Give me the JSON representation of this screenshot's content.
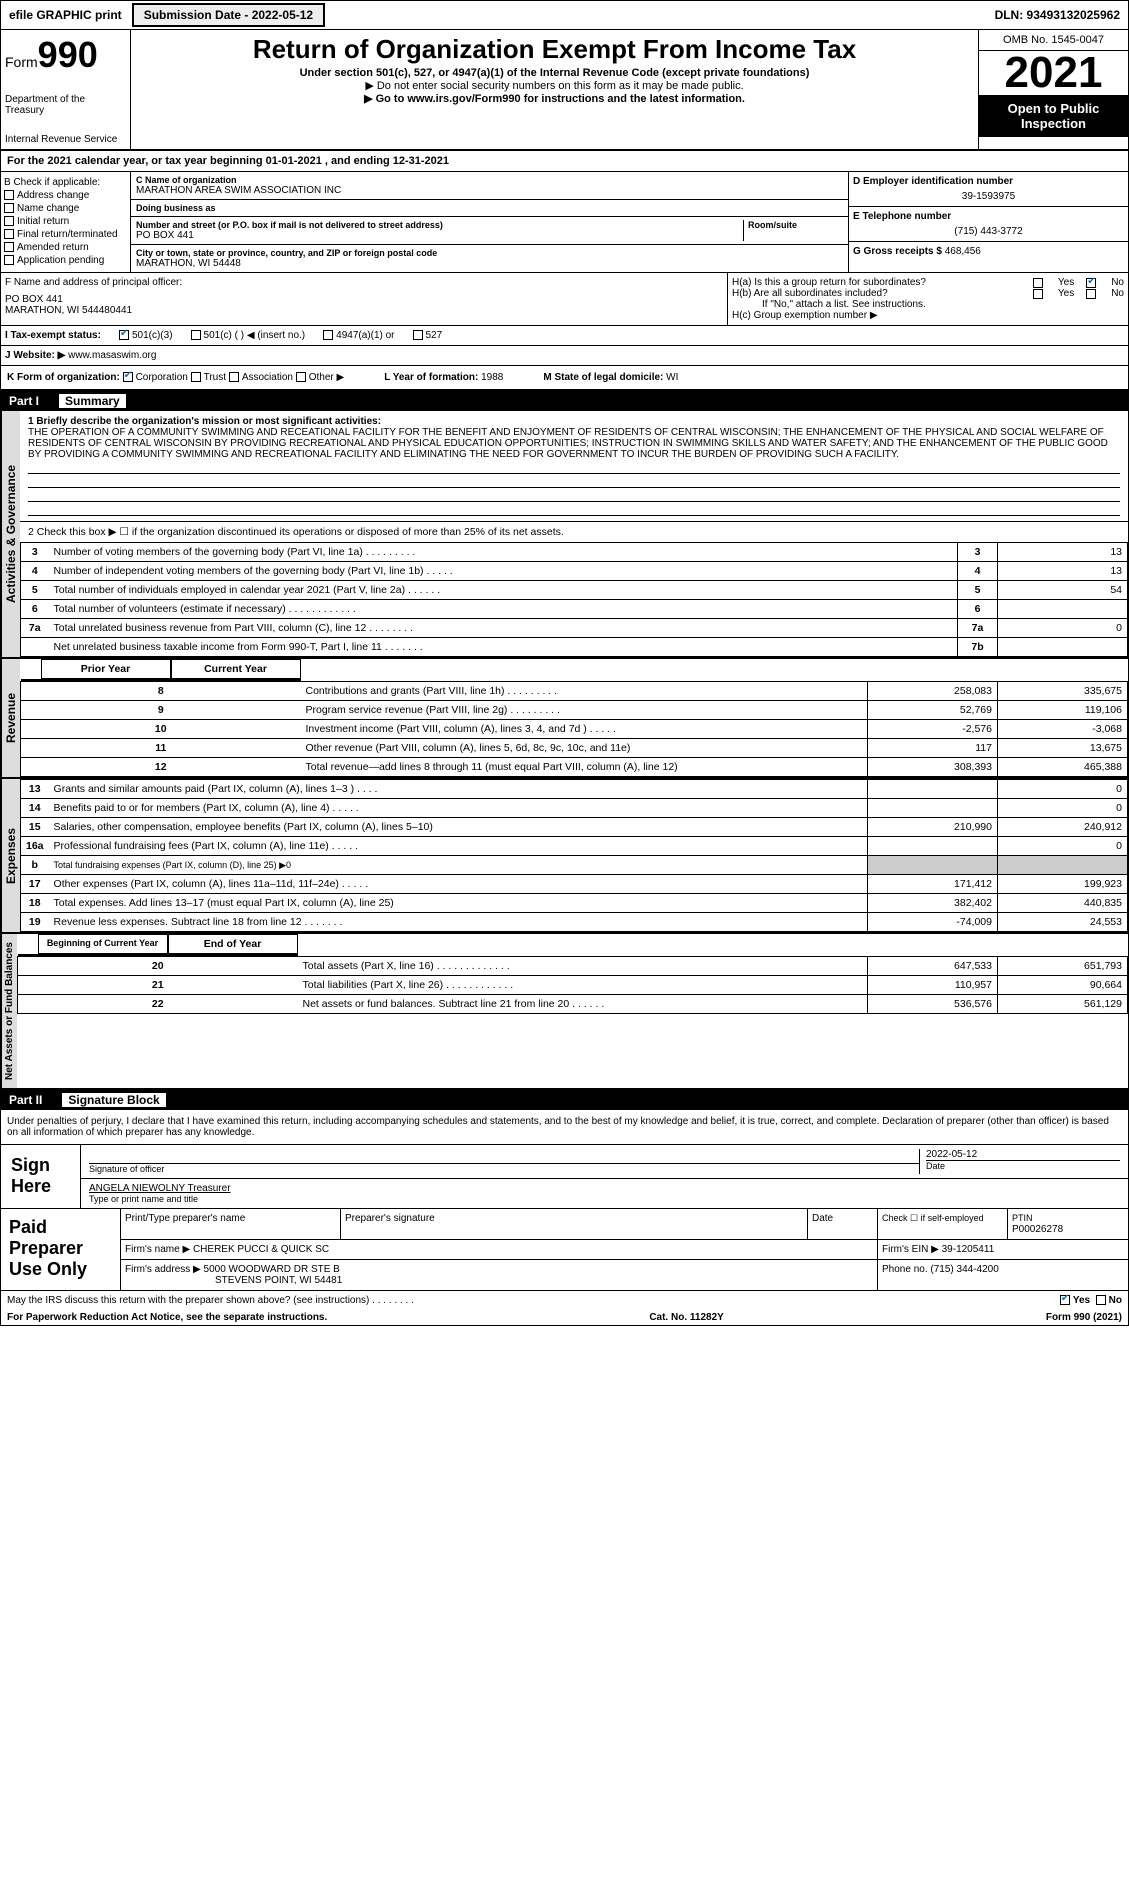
{
  "topbar": {
    "efile": "efile GRAPHIC print",
    "subdate_label": "Submission Date - 2022-05-12",
    "dln": "DLN: 93493132025962"
  },
  "hdr": {
    "form_word": "Form",
    "form_num": "990",
    "dept": "Department of the Treasury",
    "irs": "Internal Revenue Service",
    "title": "Return of Organization Exempt From Income Tax",
    "sub": "Under section 501(c), 527, or 4947(a)(1) of the Internal Revenue Code (except private foundations)",
    "note1": "▶ Do not enter social security numbers on this form as it may be made public.",
    "note2": "▶ Go to www.irs.gov/Form990 for instructions and the latest information.",
    "omb": "OMB No. 1545-0047",
    "year": "2021",
    "pub": "Open to Public Inspection"
  },
  "taxyear": "For the 2021 calendar year, or tax year beginning 01-01-2021   , and ending 12-31-2021",
  "b": {
    "title": "B Check if applicable:",
    "opts": [
      "Address change",
      "Name change",
      "Initial return",
      "Final return/terminated",
      "Amended return",
      "Application pending"
    ]
  },
  "c": {
    "name_lbl": "C Name of organization",
    "name": "MARATHON AREA SWIM ASSOCIATION INC",
    "dba_lbl": "Doing business as",
    "dba": "",
    "street_lbl": "Number and street (or P.O. box if mail is not delivered to street address)",
    "street": "PO BOX 441",
    "room_lbl": "Room/suite",
    "city_lbl": "City or town, state or province, country, and ZIP or foreign postal code",
    "city": "MARATHON, WI  54448"
  },
  "d": {
    "lbl": "D Employer identification number",
    "val": "39-1593975"
  },
  "e": {
    "lbl": "E Telephone number",
    "val": "(715) 443-3772"
  },
  "g": {
    "lbl": "G Gross receipts $",
    "val": "468,456"
  },
  "f": {
    "lbl": "F  Name and address of principal officer:",
    "l1": "PO BOX 441",
    "l2": "MARATHON, WI  544480441"
  },
  "h": {
    "a": "H(a)  Is this a group return for subordinates?",
    "b": "H(b)  Are all subordinates included?",
    "note": "If \"No,\" attach a list. See instructions.",
    "c": "H(c)  Group exemption number ▶"
  },
  "i": {
    "lbl": "I   Tax-exempt status:",
    "o1": "501(c)(3)",
    "o2": "501(c) (  ) ◀ (insert no.)",
    "o3": "4947(a)(1) or",
    "o4": "527"
  },
  "j": {
    "lbl": "J   Website: ▶",
    "val": "www.masaswim.org"
  },
  "k": {
    "lbl": "K Form of organization:",
    "o1": "Corporation",
    "o2": "Trust",
    "o3": "Association",
    "o4": "Other ▶"
  },
  "l": {
    "lbl": "L Year of formation:",
    "val": "1988"
  },
  "m": {
    "lbl": "M State of legal domicile:",
    "val": "WI"
  },
  "part1": {
    "hdr": "Part I",
    "title": "Summary"
  },
  "mission": {
    "lbl": "1   Briefly describe the organization's mission or most significant activities:",
    "txt": "THE OPERATION OF A COMMUNITY SWIMMING AND RECEATIONAL FACILITY FOR THE BENEFIT AND ENJOYMENT OF RESIDENTS OF CENTRAL WISCONSIN; THE ENHANCEMENT OF THE PHYSICAL AND SOCIAL WELFARE OF RESIDENTS OF CENTRAL WISCONSIN BY PROVIDING RECREATIONAL AND PHYSICAL EDUCATION OPPORTUNITIES; INSTRUCTION IN SWIMMING SKILLS AND WATER SAFETY; AND THE ENHANCEMENT OF THE PUBLIC GOOD BY PROVIDING A COMMUNITY SWIMMING AND RECREATIONAL FACILITY AND ELIMINATING THE NEED FOR GOVERNMENT TO INCUR THE BURDEN OF PROVIDING SUCH A FACILITY."
  },
  "gov": {
    "l2": "2   Check this box ▶ ☐ if the organization discontinued its operations or disposed of more than 25% of its net assets.",
    "rows": [
      {
        "n": "3",
        "t": "Number of voting members of the governing body (Part VI, line 1a)   .    .    .    .    .    .    .    .    .",
        "rn": "3",
        "v": "13"
      },
      {
        "n": "4",
        "t": "Number of independent voting members of the governing body (Part VI, line 1b)    .    .    .    .    .",
        "rn": "4",
        "v": "13"
      },
      {
        "n": "5",
        "t": "Total number of individuals employed in calendar year 2021 (Part V, line 2a)    .    .    .    .    .    .",
        "rn": "5",
        "v": "54"
      },
      {
        "n": "6",
        "t": "Total number of volunteers (estimate if necessary)    .    .    .    .    .    .    .    .    .    .    .    .",
        "rn": "6",
        "v": ""
      },
      {
        "n": "7a",
        "t": "Total unrelated business revenue from Part VIII, column (C), line 12    .    .    .    .    .    .    .    .",
        "rn": "7a",
        "v": "0"
      },
      {
        "n": "",
        "t": "Net unrelated business taxable income from Form 990-T, Part I, line 11    .    .    .    .    .    .    .",
        "rn": "7b",
        "v": ""
      }
    ]
  },
  "rev": {
    "hdr_py": "Prior Year",
    "hdr_cy": "Current Year",
    "rows": [
      {
        "n": "8",
        "t": "Contributions and grants (Part VIII, line 1h)   .    .    .    .    .    .    .    .    .",
        "py": "258,083",
        "cy": "335,675"
      },
      {
        "n": "9",
        "t": "Program service revenue (Part VIII, line 2g)   .    .    .    .    .    .    .    .    .",
        "py": "52,769",
        "cy": "119,106"
      },
      {
        "n": "10",
        "t": "Investment income (Part VIII, column (A), lines 3, 4, and 7d )   .    .    .    .    .",
        "py": "-2,576",
        "cy": "-3,068"
      },
      {
        "n": "11",
        "t": "Other revenue (Part VIII, column (A), lines 5, 6d, 8c, 9c, 10c, and 11e)",
        "py": "117",
        "cy": "13,675"
      },
      {
        "n": "12",
        "t": "Total revenue—add lines 8 through 11 (must equal Part VIII, column (A), line 12)",
        "py": "308,393",
        "cy": "465,388"
      }
    ]
  },
  "exp": {
    "rows": [
      {
        "n": "13",
        "t": "Grants and similar amounts paid (Part IX, column (A), lines 1–3 )   .    .    .    .",
        "py": "",
        "cy": "0"
      },
      {
        "n": "14",
        "t": "Benefits paid to or for members (Part IX, column (A), line 4)   .    .    .    .    .",
        "py": "",
        "cy": "0"
      },
      {
        "n": "15",
        "t": "Salaries, other compensation, employee benefits (Part IX, column (A), lines 5–10)",
        "py": "210,990",
        "cy": "240,912"
      },
      {
        "n": "16a",
        "t": "Professional fundraising fees (Part IX, column (A), line 11e)   .    .    .    .    .",
        "py": "",
        "cy": "0"
      },
      {
        "n": "b",
        "t": "Total fundraising expenses (Part IX, column (D), line 25) ▶0",
        "py": "—shade—",
        "cy": "—shade—"
      },
      {
        "n": "17",
        "t": "Other expenses (Part IX, column (A), lines 11a–11d, 11f–24e)   .    .    .    .    .",
        "py": "171,412",
        "cy": "199,923"
      },
      {
        "n": "18",
        "t": "Total expenses. Add lines 13–17 (must equal Part IX, column (A), line 25)",
        "py": "382,402",
        "cy": "440,835"
      },
      {
        "n": "19",
        "t": "Revenue less expenses. Subtract line 18 from line 12   .    .    .    .    .    .    .",
        "py": "-74,009",
        "cy": "24,553"
      }
    ]
  },
  "net": {
    "hdr_b": "Beginning of Current Year",
    "hdr_e": "End of Year",
    "rows": [
      {
        "n": "20",
        "t": "Total assets (Part X, line 16)   .    .    .    .    .    .    .    .    .    .    .    .    .",
        "b": "647,533",
        "e": "651,793"
      },
      {
        "n": "21",
        "t": "Total liabilities (Part X, line 26)   .    .    .    .    .    .    .    .    .    .    .    .",
        "b": "110,957",
        "e": "90,664"
      },
      {
        "n": "22",
        "t": "Net assets or fund balances. Subtract line 21 from line 20    .    .    .    .    .    .",
        "b": "536,576",
        "e": "561,129"
      }
    ]
  },
  "vlabels": {
    "gov": "Activities & Governance",
    "rev": "Revenue",
    "exp": "Expenses",
    "net": "Net Assets or Fund Balances"
  },
  "part2": {
    "hdr": "Part II",
    "title": "Signature Block"
  },
  "sig": {
    "decl": "Under penalties of perjury, I declare that I have examined this return, including accompanying schedules and statements, and to the best of my knowledge and belief, it is true, correct, and complete. Declaration of preparer (other than officer) is based on all information of which preparer has any knowledge.",
    "here": "Sign Here",
    "sig_lbl": "Signature of officer",
    "date_lbl": "Date",
    "date": "2022-05-12",
    "name": "ANGELA NIEWOLNY Treasurer",
    "type_lbl": "Type or print name and title"
  },
  "prep": {
    "title": "Paid Preparer Use Only",
    "pname_lbl": "Print/Type preparer's name",
    "psig_lbl": "Preparer's signature",
    "pdate_lbl": "Date",
    "self_lbl": "Check ☐ if self-employed",
    "ptin_lbl": "PTIN",
    "ptin": "P00026278",
    "firm_lbl": "Firm's name   ▶",
    "firm": "CHEREK PUCCI & QUICK SC",
    "ein_lbl": "Firm's EIN ▶",
    "ein": "39-1205411",
    "addr_lbl": "Firm's address ▶",
    "addr1": "5000 WOODWARD DR STE B",
    "addr2": "STEVENS POINT, WI  54481",
    "phone_lbl": "Phone no.",
    "phone": "(715) 344-4200"
  },
  "foot": {
    "discuss": "May the IRS discuss this return with the preparer shown above? (see instructions)    .    .    .    .    .    .    .    .",
    "yes": "Yes",
    "no": "No",
    "pra": "For Paperwork Reduction Act Notice, see the separate instructions.",
    "cat": "Cat. No. 11282Y",
    "form": "Form 990 (2021)"
  }
}
